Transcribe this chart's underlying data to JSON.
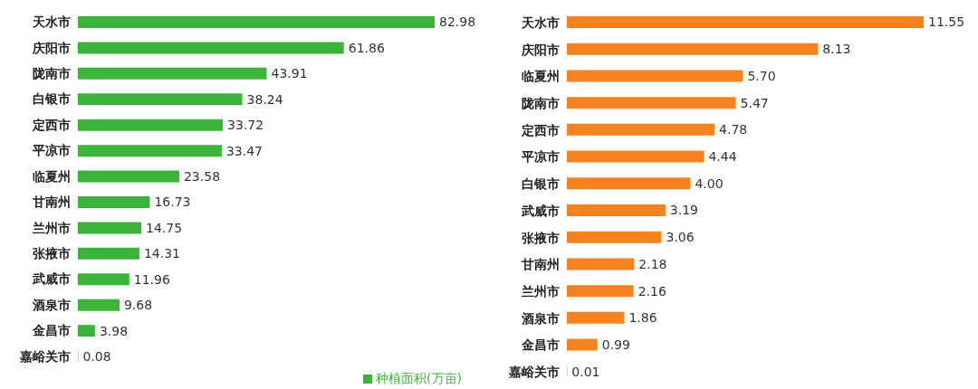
{
  "chart_data": [
    {
      "type": "bar",
      "orientation": "horizontal",
      "legend": "bottom right",
      "categories": [
        "天水市",
        "庆阳市",
        "陇南市",
        "白银市",
        "定西市",
        "平凉市",
        "临夏州",
        "甘南州",
        "兰州市",
        "张掖市",
        "武威市",
        "酒泉市",
        "金昌市",
        "嘉峪关市"
      ],
      "series": [
        {
          "name": "种植面积(万亩)",
          "color": "#3cb43c",
          "values": [
            82.98,
            61.86,
            43.91,
            38.24,
            33.72,
            33.47,
            23.58,
            16.73,
            14.75,
            14.31,
            11.96,
            9.68,
            3.98,
            0.08
          ],
          "value_labels": [
            "82.98",
            "61.86",
            "43.91",
            "38.24",
            "33.72",
            "33.47",
            "23.58",
            "16.73",
            "14.75",
            "14.31",
            "11.96",
            "9.68",
            "3.98",
            "0.08"
          ]
        }
      ]
    },
    {
      "type": "bar",
      "orientation": "horizontal",
      "categories": [
        "天水市",
        "庆阳市",
        "临夏州",
        "陇南市",
        "定西市",
        "平凉市",
        "白银市",
        "武威市",
        "张掖市",
        "甘南州",
        "兰州市",
        "酒泉市",
        "金昌市",
        "嘉峪关市"
      ],
      "series": [
        {
          "color": "#f5821e",
          "values": [
            11.55,
            8.13,
            5.7,
            5.47,
            4.78,
            4.44,
            4.0,
            3.19,
            3.06,
            2.18,
            2.16,
            1.86,
            0.99,
            0.01
          ],
          "value_labels": [
            "11.55",
            "8.13",
            "5.70",
            "5.47",
            "4.78",
            "4.44",
            "4.00",
            "3.19",
            "3.06",
            "2.18",
            "2.16",
            "1.86",
            "0.99",
            "0.01"
          ]
        }
      ]
    }
  ]
}
